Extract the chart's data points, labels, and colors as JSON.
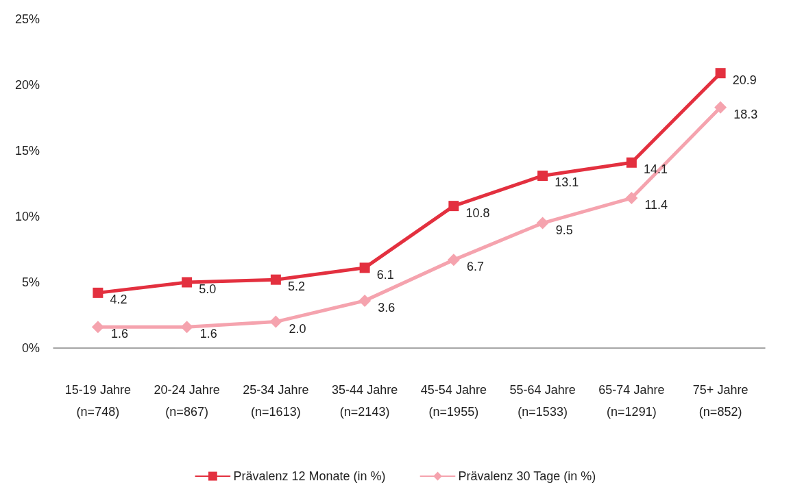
{
  "chart_data": {
    "type": "line",
    "categories": [
      "15-19 Jahre\n(n=748)",
      "20-24 Jahre\n(n=867)",
      "25-34 Jahre\n(n=1613)",
      "35-44 Jahre\n(n=2143)",
      "45-54 Jahre\n(n=1955)",
      "55-64 Jahre\n(n=1533)",
      "65-74 Jahre\n(n=1291)",
      "75+ Jahre\n(n=852)"
    ],
    "series": [
      {
        "name": "Prävalenz 12 Monate (in %)",
        "color": "#e3303f",
        "marker": "square",
        "values": [
          4.2,
          5.0,
          5.2,
          6.1,
          10.8,
          13.1,
          14.1,
          20.9
        ],
        "value_labels": [
          "4.2",
          "5.0",
          "5.2",
          "6.1",
          "10.8",
          "13.1",
          "14.1",
          "20.9"
        ]
      },
      {
        "name": "Prävalenz 30 Tage (in %)",
        "color": "#f5a3ae",
        "marker": "diamond",
        "values": [
          1.6,
          1.6,
          2.0,
          3.6,
          6.7,
          9.5,
          11.4,
          18.3
        ],
        "value_labels": [
          "1.6",
          "1.6",
          "2.0",
          "3.6",
          "6.7",
          "9.5",
          "11.4",
          "18.3"
        ]
      }
    ],
    "ylim": [
      0,
      25
    ],
    "yticks": [
      {
        "value": 0,
        "label": "0%"
      },
      {
        "value": 5,
        "label": "5%"
      },
      {
        "value": 10,
        "label": "10%"
      },
      {
        "value": 15,
        "label": "15%"
      },
      {
        "value": 20,
        "label": "20%"
      },
      {
        "value": 25,
        "label": "25%"
      }
    ],
    "grid": false,
    "legend": "bottom",
    "line_style": "solid"
  }
}
